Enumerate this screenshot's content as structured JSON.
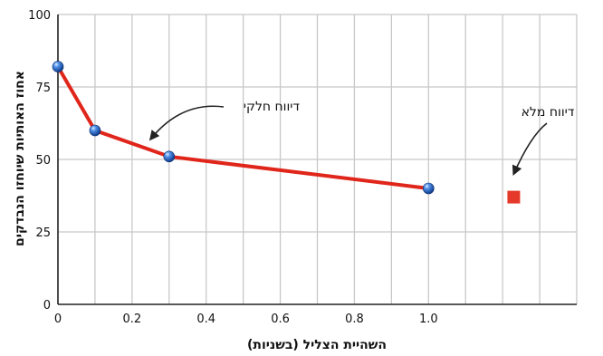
{
  "chart_data": {
    "type": "line",
    "xlabel": "השהיית הצליל (בשניות)",
    "ylabel": "אחוז האותיות שיוחזו הנבדקים",
    "xlim": [
      0,
      1.4
    ],
    "ylim": [
      0,
      100
    ],
    "x_ticks": [
      "0",
      "0.2",
      "0.4",
      "0.6",
      "0.8",
      "1.0"
    ],
    "x_tick_values": [
      0,
      0.2,
      0.4,
      0.6,
      0.8,
      1.0
    ],
    "y_ticks": [
      "0",
      "25",
      "50",
      "75",
      "100"
    ],
    "y_tick_values": [
      0,
      25,
      50,
      75,
      100
    ],
    "grid": true,
    "series": [
      {
        "x": [
          0,
          0.1,
          0.3,
          1.0
        ],
        "y": [
          82,
          60,
          51,
          40
        ],
        "color": "#e0261b",
        "marker_color": "#2f6fd6",
        "curve_through": [
          [
            0.3,
            51
          ],
          [
            0.45,
            48.5
          ],
          [
            0.7,
            44.5
          ],
          [
            1.0,
            40
          ]
        ]
      }
    ],
    "extra_points": [
      {
        "x": 1.23,
        "y": 37,
        "color": "#e53a2a",
        "marker": "square"
      }
    ],
    "annotations": [
      {
        "text": "דיווח חלקי",
        "target": [
          0.25,
          57
        ],
        "color": "#111111"
      },
      {
        "text": "דיווח מלא",
        "target": [
          1.23,
          45
        ],
        "color": "#111111"
      }
    ]
  }
}
